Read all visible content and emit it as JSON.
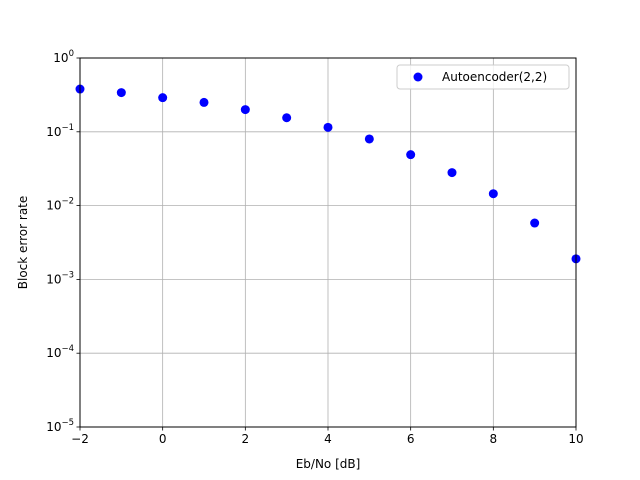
{
  "chart_data": {
    "type": "scatter",
    "xlabel": "Eb/No [dB]",
    "ylabel": "Block error rate",
    "xlim": [
      -2,
      10
    ],
    "ylim": [
      1e-05,
      1
    ],
    "yscale": "log",
    "grid": true,
    "legend_position": "top-right",
    "x_ticks": [
      {
        "value": -2,
        "label": "−2"
      },
      {
        "value": 0,
        "label": "0"
      },
      {
        "value": 2,
        "label": "2"
      },
      {
        "value": 4,
        "label": "4"
      },
      {
        "value": 6,
        "label": "6"
      },
      {
        "value": 8,
        "label": "8"
      },
      {
        "value": 10,
        "label": "10"
      }
    ],
    "y_ticks": [
      {
        "value": 1,
        "base": "10",
        "exp": "0"
      },
      {
        "value": 0.1,
        "base": "10",
        "exp": "−1"
      },
      {
        "value": 0.01,
        "base": "10",
        "exp": "−2"
      },
      {
        "value": 0.001,
        "base": "10",
        "exp": "−3"
      },
      {
        "value": 0.0001,
        "base": "10",
        "exp": "−4"
      },
      {
        "value": 1e-05,
        "base": "10",
        "exp": "−5"
      }
    ],
    "series": [
      {
        "name": "Autoencoder(2,2)",
        "color": "#0000ff",
        "marker": "circle",
        "x": [
          -2,
          -1,
          0,
          1,
          2,
          3,
          4,
          5,
          6,
          7,
          8,
          9,
          10
        ],
        "y": [
          0.38,
          0.34,
          0.29,
          0.25,
          0.2,
          0.155,
          0.115,
          0.08,
          0.049,
          0.028,
          0.0145,
          0.0058,
          0.0019
        ]
      }
    ]
  }
}
